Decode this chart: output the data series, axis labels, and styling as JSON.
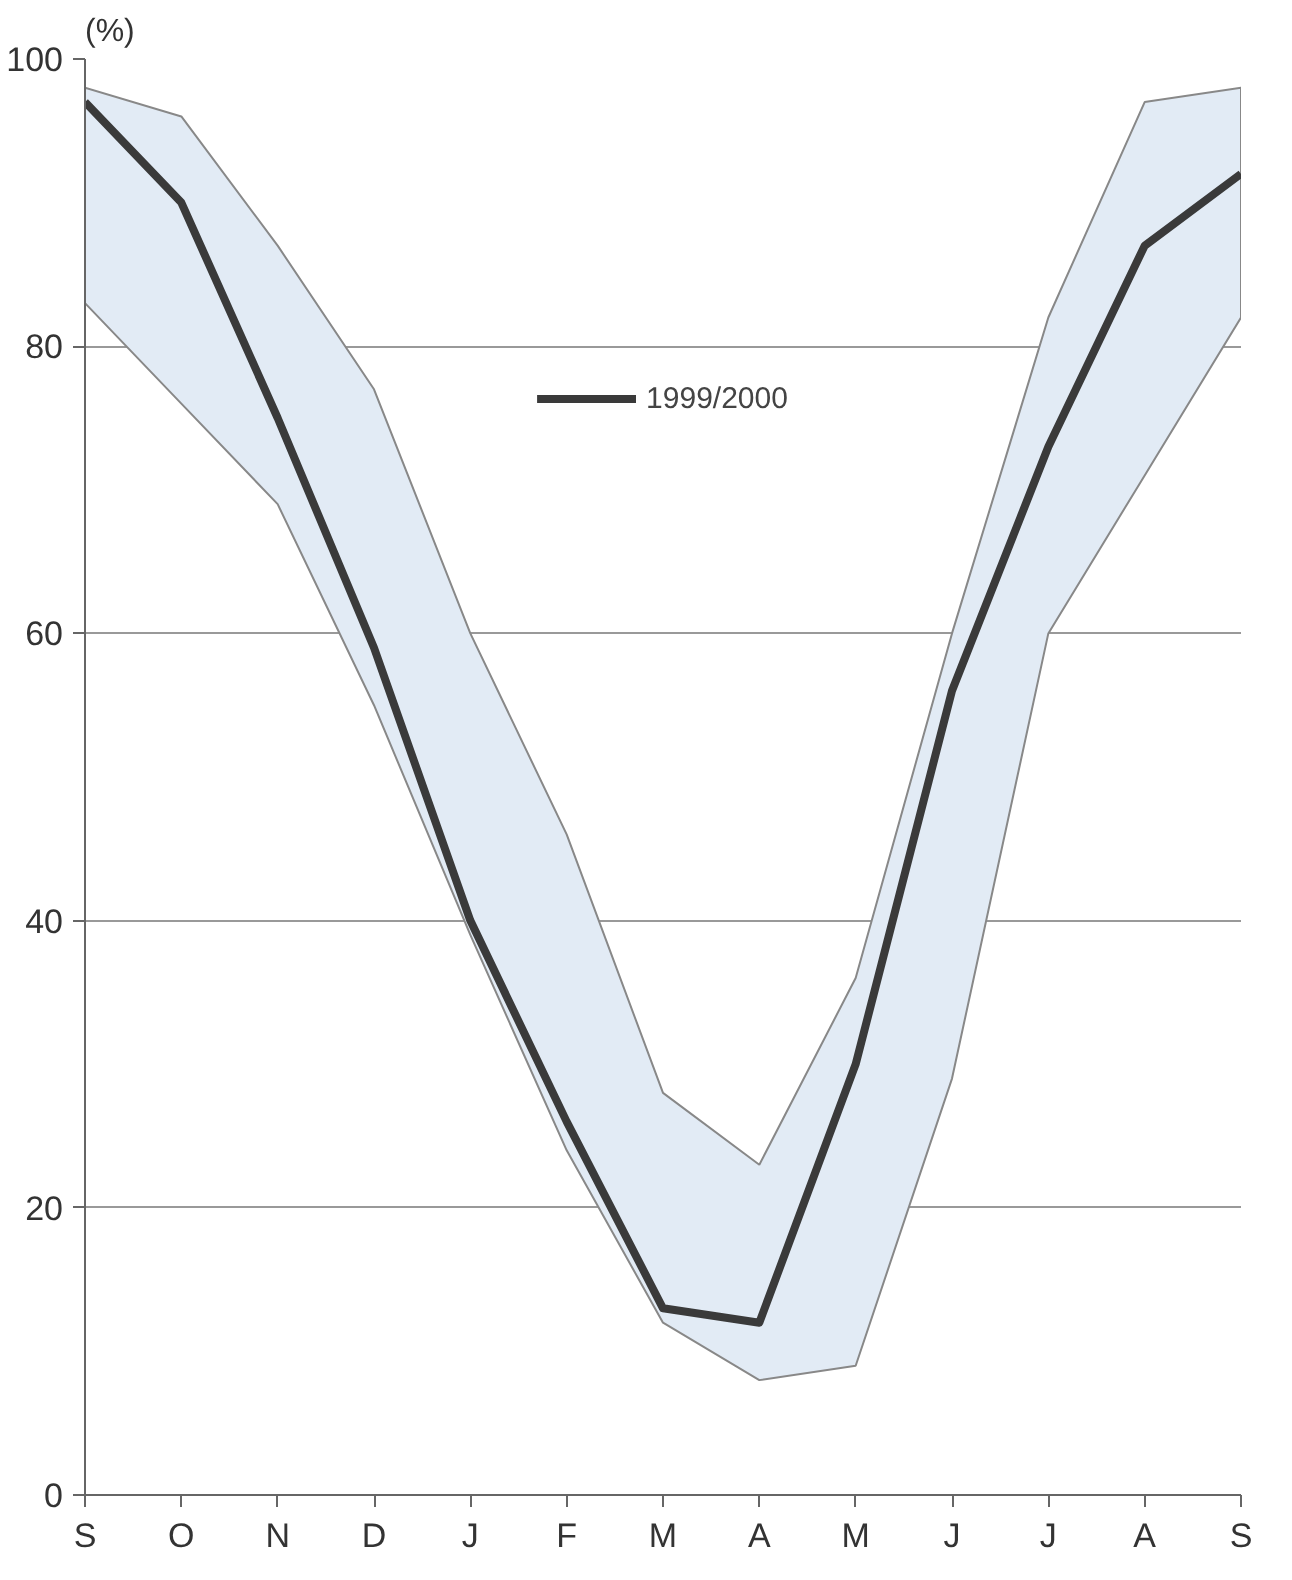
{
  "chart_data": {
    "type": "line",
    "ylabel": "(%)",
    "categories": [
      "S",
      "O",
      "N",
      "D",
      "J",
      "F",
      "M",
      "A",
      "M",
      "J",
      "J",
      "A",
      "S"
    ],
    "series": [
      {
        "name": "1999/2000",
        "color": "#3a3a3a",
        "values": [
          97,
          90,
          75,
          59,
          40,
          26,
          13,
          12,
          30,
          56,
          73,
          87,
          92
        ],
        "lower": [
          83,
          76,
          69,
          55,
          39,
          24,
          12,
          8,
          9,
          29,
          60,
          71,
          82
        ],
        "upper": [
          98,
          96,
          87,
          77,
          60,
          46,
          28,
          23,
          36,
          60,
          82,
          97,
          98
        ]
      }
    ],
    "ylim": [
      0,
      100
    ],
    "yticks": [
      0,
      20,
      40,
      60,
      80,
      100
    ],
    "grid": "y",
    "legend": "top",
    "line_style": "solid",
    "marker": "none"
  }
}
